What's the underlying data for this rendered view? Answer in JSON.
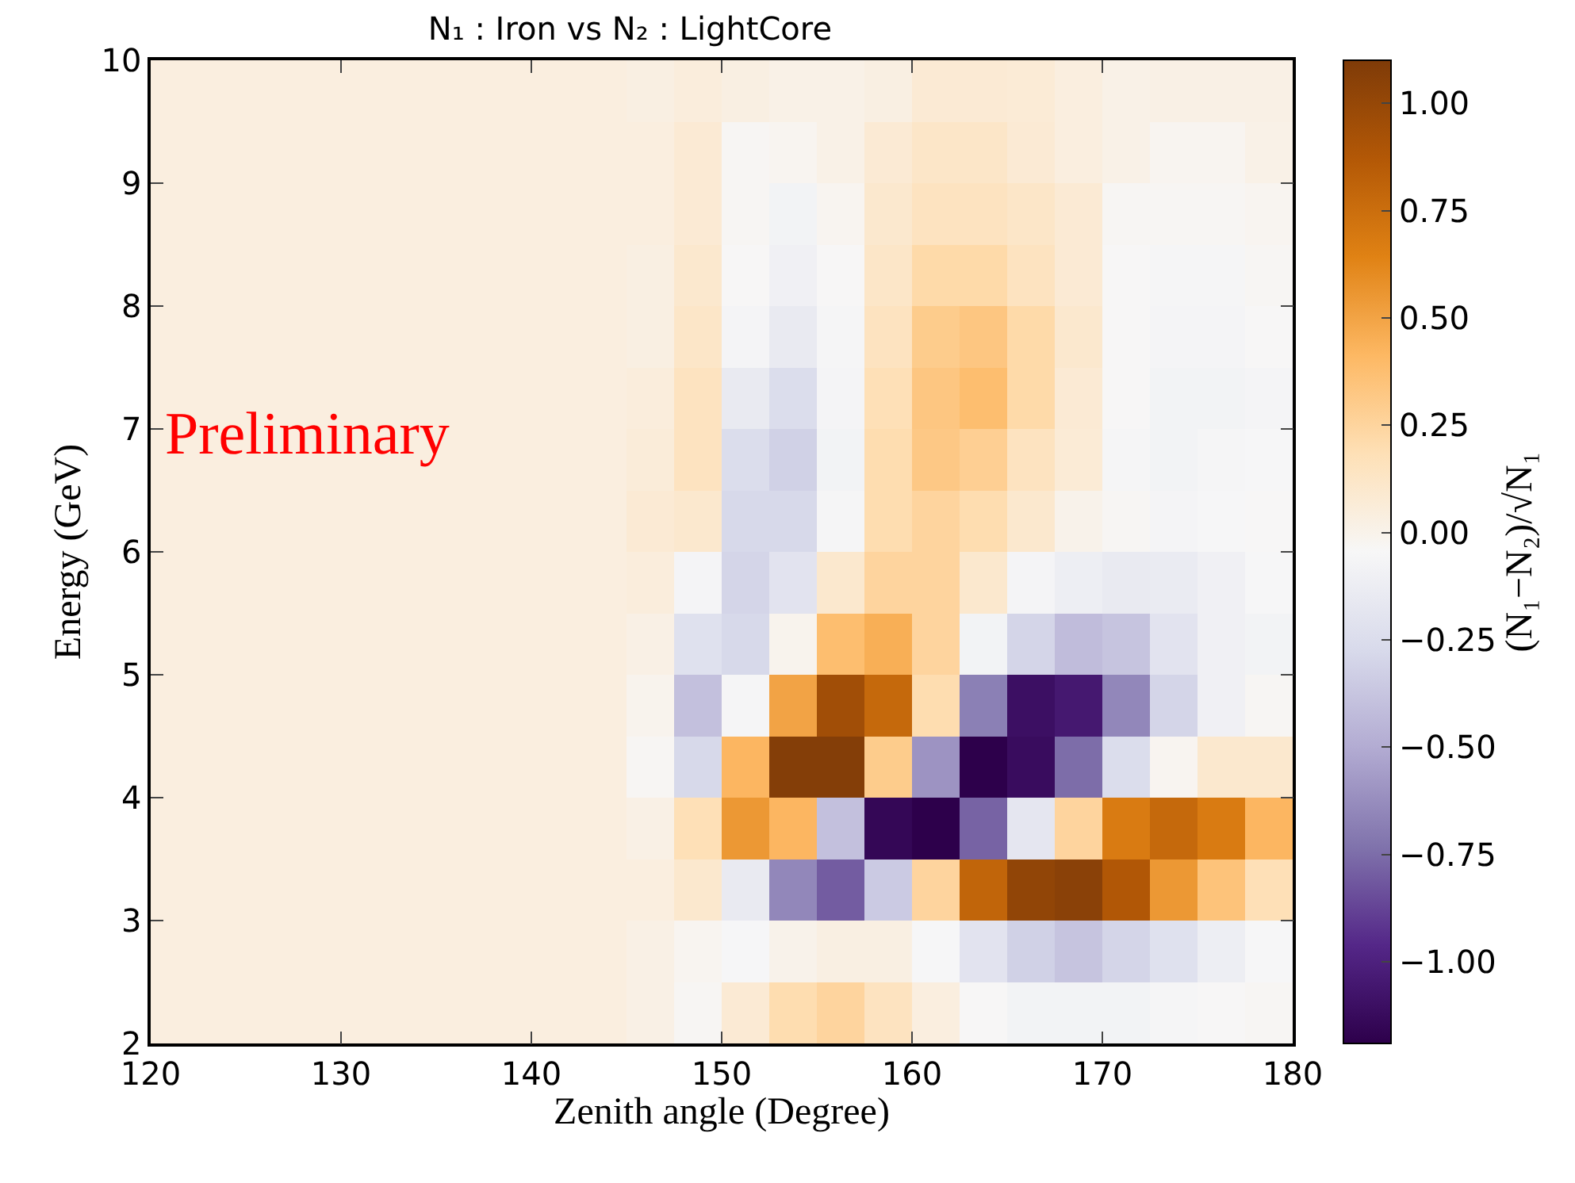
{
  "chart_data": {
    "type": "heatmap",
    "title": "N₁ : Iron vs N₂ : LightCore",
    "xlabel": "Zenith angle (Degree)",
    "ylabel": "Energy (GeV)",
    "clabel": "(N₁−N₂)/√N₁",
    "annotations": [
      "Preliminary"
    ],
    "xlim": [
      120,
      180
    ],
    "xticks": [
      120,
      130,
      140,
      150,
      160,
      170,
      180
    ],
    "ylim": [
      2,
      10
    ],
    "yticks": [
      2,
      3,
      4,
      5,
      6,
      7,
      8,
      9,
      10
    ],
    "clim": [
      -1.19,
      1.1
    ],
    "cticks": [
      {
        "value": -1.0,
        "label": "−1.00"
      },
      {
        "value": -0.75,
        "label": "−0.75"
      },
      {
        "value": -0.5,
        "label": "−0.50"
      },
      {
        "value": -0.25,
        "label": "−0.25"
      },
      {
        "value": 0.0,
        "label": "0.00"
      },
      {
        "value": 0.25,
        "label": "0.25"
      },
      {
        "value": 0.5,
        "label": "0.50"
      },
      {
        "value": 0.75,
        "label": "0.75"
      },
      {
        "value": 1.0,
        "label": "1.00"
      }
    ],
    "cells": [
      [
        0.04,
        0.04,
        0.04,
        0.04,
        0.04,
        0.04,
        0.04,
        0.04,
        0.04,
        0.04,
        0.03,
        0.05,
        0.03,
        0.01,
        0.01,
        0.03,
        0.08,
        0.08,
        0.07,
        0.04,
        0.01,
        0.02,
        0.02,
        0.02
      ],
      [
        0.04,
        0.04,
        0.04,
        0.04,
        0.04,
        0.04,
        0.04,
        0.04,
        0.04,
        0.04,
        0.04,
        0.08,
        -0.03,
        -0.02,
        0.01,
        0.08,
        0.12,
        0.12,
        0.08,
        0.04,
        0.01,
        -0.02,
        -0.02,
        0.01
      ],
      [
        0.04,
        0.04,
        0.04,
        0.04,
        0.04,
        0.04,
        0.04,
        0.04,
        0.04,
        0.04,
        0.04,
        0.08,
        -0.03,
        -0.08,
        -0.02,
        0.1,
        0.15,
        0.15,
        0.12,
        0.08,
        -0.03,
        -0.03,
        -0.03,
        -0.02
      ],
      [
        0.04,
        0.04,
        0.04,
        0.04,
        0.04,
        0.04,
        0.04,
        0.04,
        0.04,
        0.04,
        0.03,
        0.1,
        -0.04,
        -0.1,
        -0.04,
        0.12,
        0.22,
        0.22,
        0.15,
        0.08,
        -0.04,
        -0.06,
        -0.06,
        -0.03
      ],
      [
        0.04,
        0.04,
        0.04,
        0.04,
        0.04,
        0.04,
        0.04,
        0.04,
        0.04,
        0.04,
        0.03,
        0.12,
        -0.07,
        -0.15,
        -0.06,
        0.15,
        0.3,
        0.33,
        0.22,
        0.1,
        -0.04,
        -0.07,
        -0.07,
        -0.04
      ],
      [
        0.04,
        0.04,
        0.04,
        0.04,
        0.04,
        0.04,
        0.04,
        0.04,
        0.04,
        0.04,
        0.05,
        0.15,
        -0.15,
        -0.25,
        -0.07,
        0.18,
        0.33,
        0.38,
        0.22,
        0.08,
        -0.04,
        -0.08,
        -0.08,
        -0.07
      ],
      [
        0.04,
        0.04,
        0.04,
        0.04,
        0.04,
        0.04,
        0.04,
        0.04,
        0.04,
        0.04,
        0.06,
        0.15,
        -0.25,
        -0.32,
        -0.08,
        0.2,
        0.32,
        0.28,
        0.15,
        0.07,
        -0.06,
        -0.08,
        -0.06,
        -0.05
      ],
      [
        0.04,
        0.04,
        0.04,
        0.04,
        0.04,
        0.04,
        0.04,
        0.04,
        0.04,
        0.04,
        0.08,
        0.1,
        -0.28,
        -0.28,
        -0.06,
        0.2,
        0.25,
        0.2,
        0.1,
        0.0,
        -0.03,
        -0.07,
        -0.05,
        -0.04
      ],
      [
        0.04,
        0.04,
        0.04,
        0.04,
        0.04,
        0.04,
        0.04,
        0.04,
        0.04,
        0.04,
        0.05,
        -0.07,
        -0.3,
        -0.2,
        0.1,
        0.25,
        0.25,
        0.1,
        -0.07,
        -0.12,
        -0.15,
        -0.14,
        -0.1,
        -0.05
      ],
      [
        0.04,
        0.04,
        0.04,
        0.04,
        0.04,
        0.04,
        0.04,
        0.04,
        0.04,
        0.04,
        0.02,
        -0.22,
        -0.28,
        -0.01,
        0.38,
        0.45,
        0.25,
        -0.08,
        -0.3,
        -0.42,
        -0.38,
        -0.2,
        -0.1,
        -0.08
      ],
      [
        0.04,
        0.04,
        0.04,
        0.04,
        0.04,
        0.04,
        0.04,
        0.04,
        0.04,
        0.04,
        -0.01,
        -0.4,
        -0.06,
        0.5,
        0.95,
        0.78,
        0.2,
        -0.68,
        -1.1,
        -1.05,
        -0.65,
        -0.3,
        -0.1,
        -0.03
      ],
      [
        0.04,
        0.04,
        0.04,
        0.04,
        0.04,
        0.04,
        0.04,
        0.04,
        0.04,
        0.04,
        -0.03,
        -0.28,
        0.42,
        1.08,
        1.08,
        0.3,
        -0.6,
        -1.19,
        -1.12,
        -0.75,
        -0.25,
        -0.02,
        0.1,
        0.1
      ],
      [
        0.04,
        0.04,
        0.04,
        0.04,
        0.04,
        0.04,
        0.04,
        0.04,
        0.04,
        0.04,
        0.02,
        0.18,
        0.55,
        0.42,
        -0.4,
        -1.15,
        -1.19,
        -0.78,
        -0.18,
        0.25,
        0.68,
        0.78,
        0.68,
        0.42
      ],
      [
        0.04,
        0.04,
        0.04,
        0.04,
        0.04,
        0.04,
        0.04,
        0.04,
        0.04,
        0.04,
        0.04,
        0.1,
        -0.15,
        -0.65,
        -0.8,
        -0.35,
        0.25,
        0.8,
        1.02,
        1.05,
        0.88,
        0.55,
        0.35,
        0.18
      ],
      [
        0.04,
        0.04,
        0.04,
        0.04,
        0.04,
        0.04,
        0.04,
        0.04,
        0.04,
        0.04,
        0.02,
        -0.02,
        -0.05,
        0.0,
        0.03,
        0.03,
        -0.05,
        -0.2,
        -0.32,
        -0.38,
        -0.3,
        -0.22,
        -0.12,
        -0.05
      ],
      [
        0.04,
        0.04,
        0.04,
        0.04,
        0.04,
        0.04,
        0.04,
        0.04,
        0.04,
        0.04,
        0.02,
        -0.03,
        0.08,
        0.2,
        0.25,
        0.15,
        0.04,
        -0.04,
        -0.08,
        -0.08,
        -0.08,
        -0.06,
        -0.04,
        -0.03
      ]
    ]
  }
}
